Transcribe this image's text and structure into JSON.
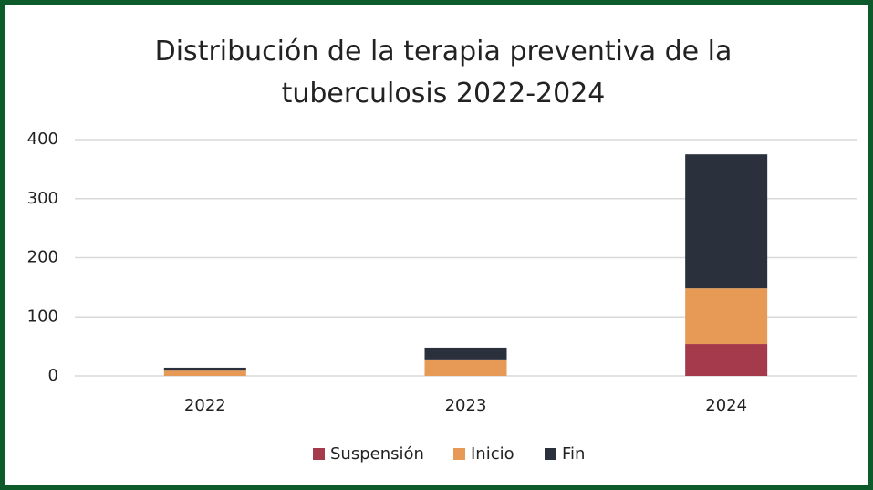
{
  "chart_data": {
    "type": "stacked_bar",
    "title": "Distribución de la terapia preventiva de la tuberculosis 2022-2024",
    "categories": [
      "2022",
      "2023",
      "2024"
    ],
    "series": [
      {
        "name": "Suspensión",
        "color": "#a43a4c",
        "values": [
          0,
          0,
          54
        ]
      },
      {
        "name": "Inicio",
        "color": "#e69a56",
        "values": [
          9,
          28,
          94
        ]
      },
      {
        "name": "Fin",
        "color": "#2b303d",
        "values": [
          5,
          20,
          227
        ]
      }
    ],
    "ylim": [
      0,
      400
    ],
    "yticks": [
      0,
      100,
      200,
      300,
      400
    ],
    "grid": true,
    "legend": "bottom"
  }
}
